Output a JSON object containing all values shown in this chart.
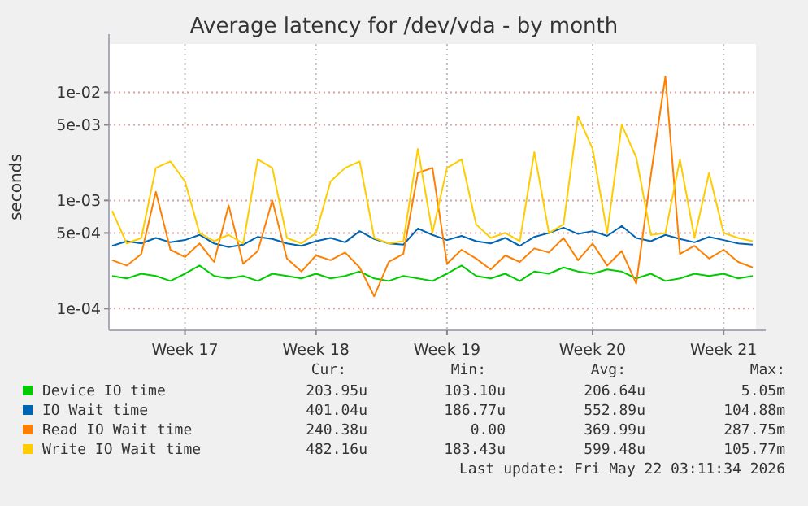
{
  "chart_data": {
    "type": "line",
    "title": "Average latency for /dev/vda - by month",
    "ylabel": "seconds",
    "log": "y",
    "grid": true,
    "legend": "bottom",
    "marker": "none",
    "categories": [
      null,
      null,
      null,
      null,
      null,
      "Week 17",
      null,
      null,
      null,
      null,
      null,
      null,
      null,
      null,
      "Week 18",
      null,
      null,
      null,
      null,
      null,
      null,
      null,
      null,
      "Week 19",
      null,
      null,
      null,
      null,
      null,
      null,
      null,
      null,
      null,
      "Week 20",
      null,
      null,
      null,
      null,
      null,
      null,
      null,
      null,
      "Week 21",
      null,
      null
    ],
    "ylim": [
      6.3e-05,
      0.028
    ],
    "yticks": [
      {
        "value": 0.0001,
        "label": "1e-04"
      },
      {
        "value": 0.0005,
        "label": "5e-04"
      },
      {
        "value": 0.001,
        "label": "1e-03"
      },
      {
        "value": 0.005,
        "label": "5e-03"
      },
      {
        "value": 0.01,
        "label": "1e-02"
      }
    ],
    "series": [
      {
        "name": "Device IO time",
        "color": "#00cc00",
        "values": [
          0.0002,
          0.00019,
          0.00021,
          0.0002,
          0.00018,
          0.00021,
          0.00025,
          0.0002,
          0.00019,
          0.0002,
          0.00018,
          0.00021,
          0.0002,
          0.00019,
          0.00021,
          0.00019,
          0.0002,
          0.00022,
          0.00019,
          0.00018,
          0.0002,
          0.00019,
          0.00018,
          0.00021,
          0.00025,
          0.0002,
          0.00019,
          0.00021,
          0.00018,
          0.00022,
          0.00021,
          0.00024,
          0.00022,
          0.00021,
          0.00023,
          0.00022,
          0.00019,
          0.00021,
          0.00018,
          0.00019,
          0.00021,
          0.0002,
          0.00021,
          0.00019,
          0.0002
        ]
      },
      {
        "name": "IO Wait time",
        "color": "#0066b3",
        "values": [
          0.00038,
          0.00042,
          0.0004,
          0.00045,
          0.00041,
          0.00043,
          0.00048,
          0.0004,
          0.00037,
          0.00039,
          0.00046,
          0.00044,
          0.0004,
          0.00038,
          0.00042,
          0.00045,
          0.00041,
          0.00052,
          0.00044,
          0.0004,
          0.00039,
          0.00055,
          0.00048,
          0.00043,
          0.00047,
          0.00042,
          0.0004,
          0.00045,
          0.00038,
          0.00046,
          0.0005,
          0.00056,
          0.00049,
          0.00052,
          0.00047,
          0.00058,
          0.00045,
          0.00042,
          0.00048,
          0.00044,
          0.00041,
          0.00046,
          0.00043,
          0.0004,
          0.00039
        ]
      },
      {
        "name": "Read IO Wait time",
        "color": "#ff8000",
        "values": [
          0.00028,
          0.00025,
          0.00032,
          0.0012,
          0.00035,
          0.0003,
          0.0004,
          0.00027,
          0.0009,
          0.00026,
          0.00034,
          0.001,
          0.00029,
          0.00022,
          0.00031,
          0.00028,
          0.00033,
          0.00024,
          0.00013,
          0.00027,
          0.00032,
          0.0018,
          0.002,
          0.00026,
          0.00035,
          0.00029,
          0.00023,
          0.00031,
          0.00027,
          0.00036,
          0.00033,
          0.00045,
          0.00028,
          0.0004,
          0.00025,
          0.00034,
          0.00017,
          0.0017,
          0.014,
          0.00032,
          0.00038,
          0.00029,
          0.00035,
          0.00027,
          0.00024
        ]
      },
      {
        "name": "Write IO Wait time",
        "color": "#ffcc00",
        "values": [
          0.0008,
          0.0004,
          0.00045,
          0.002,
          0.0023,
          0.0015,
          0.0005,
          0.00042,
          0.00048,
          0.0004,
          0.0024,
          0.002,
          0.00045,
          0.0004,
          0.0005,
          0.0015,
          0.002,
          0.0023,
          0.00045,
          0.0004,
          0.00042,
          0.003,
          0.0005,
          0.002,
          0.0024,
          0.0006,
          0.00045,
          0.0005,
          0.00042,
          0.0028,
          0.0005,
          0.0006,
          0.006,
          0.003,
          0.0005,
          0.005,
          0.0025,
          0.00048,
          0.0005,
          0.0024,
          0.00045,
          0.0018,
          0.0005,
          0.00045,
          0.00042
        ]
      }
    ],
    "annotations": [
      "Cur:",
      "Min:",
      "Avg:",
      "Max:",
      "203.95u",
      "103.10u",
      "206.64u",
      "5.05m",
      "401.04u",
      "186.77u",
      "552.89u",
      "104.88m",
      "240.38u",
      "0.00",
      "369.99u",
      "287.75m",
      "482.16u",
      "183.43u",
      "599.48u",
      "105.77m",
      "Last update: Fri May 22 03:11:34 2026"
    ]
  }
}
